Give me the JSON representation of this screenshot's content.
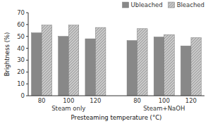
{
  "chart_data": {
    "type": "bar",
    "categories": [
      "80",
      "100",
      "120",
      "80",
      "100",
      "120"
    ],
    "series": [
      {
        "name": "Ubleached",
        "color": "#888888",
        "values": [
          53,
          50,
          48,
          46.5,
          49.5,
          42
        ]
      },
      {
        "name": "Bleached",
        "color": "#c8c8c8",
        "values": [
          59.5,
          59.5,
          57.5,
          56.5,
          51.5,
          49
        ]
      }
    ],
    "annotations": [
      "Steam only",
      "Steam+NaOH"
    ],
    "xlabel": "Presteaming temperature (°C)",
    "ylabel": "Brightness (%)",
    "ylim": [
      0,
      70
    ],
    "yticks": [
      0,
      10,
      20,
      30,
      40,
      50,
      60,
      70
    ],
    "grid": false,
    "legend": "upper right"
  }
}
